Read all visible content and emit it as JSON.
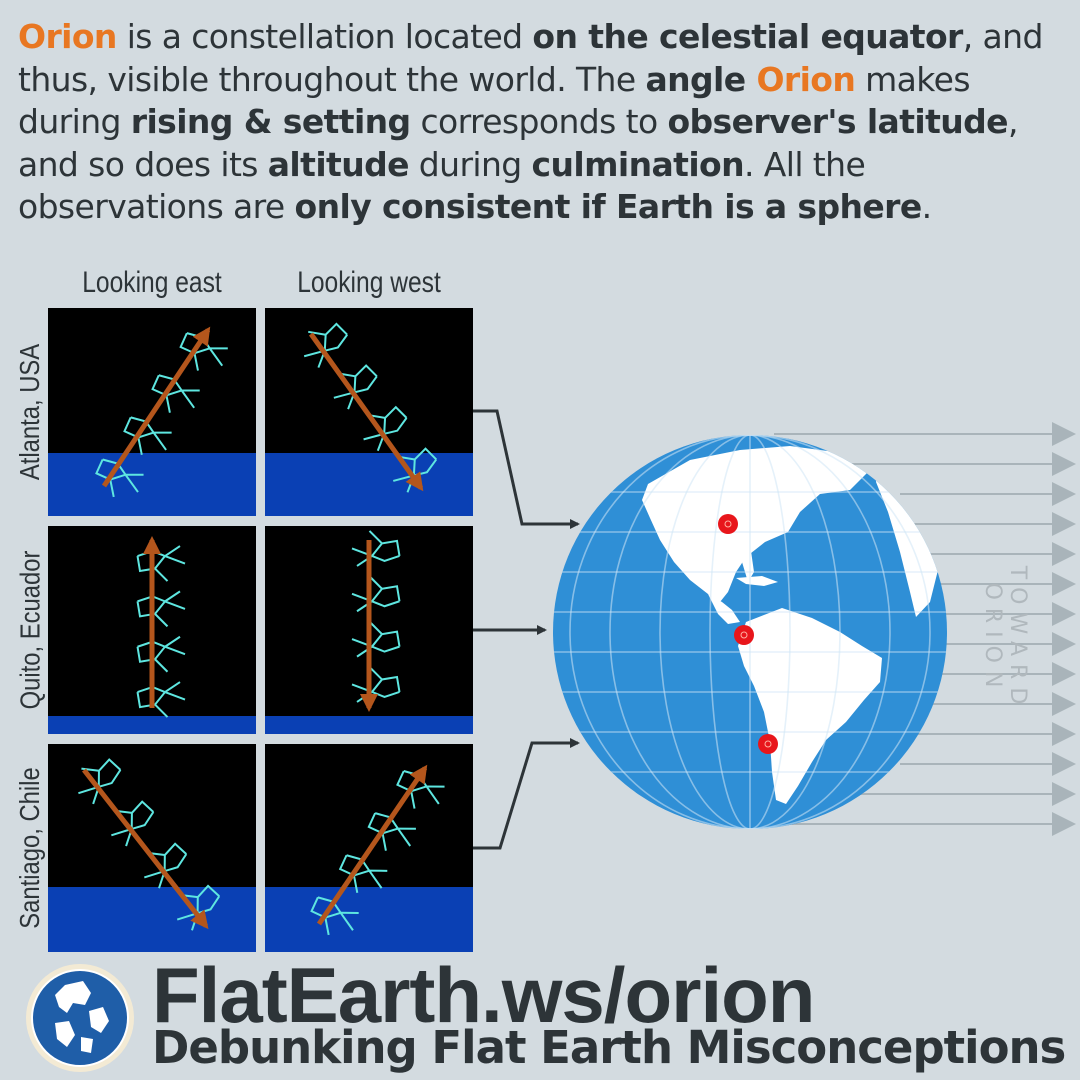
{
  "intro": {
    "s1_orion": "Orion",
    "s2": " is a constellation located ",
    "s3_bold": "on the celestial equator",
    "s4": ", and thus, visible throughout the world. The ",
    "s5_bold": "angle ",
    "s6_orion": "Orion",
    "s7": " makes during ",
    "s8_bold": "rising & setting",
    "s9": " corresponds to ",
    "s10_bold": "observer's latitude",
    "s11": ", and so does its ",
    "s12_bold": "altitude",
    "s13": " during ",
    "s14_bold": "culmination",
    "s15": ". All the observations are ",
    "s16_bold": "only consistent if Earth is a sphere",
    "s17": "."
  },
  "columns": {
    "east": "Looking east",
    "west": "Looking west"
  },
  "rows": {
    "atlanta": "Atlanta, USA",
    "quito": "Quito, Ecuador",
    "santiago": "Santiago, Chile"
  },
  "globe": {
    "toward_label": "TOWARD ORION"
  },
  "footer": {
    "brand": "FlatEarth.ws/orion",
    "tagline": "Debunking Flat Earth Misconceptions"
  },
  "colors": {
    "background": "#d3dbe0",
    "text": "#2d3438",
    "orion_accent": "#e87722",
    "sky": "#000000",
    "horizon": "#0a40b4",
    "constellation": "#5ee6e0",
    "path_arrow": "#b4561c",
    "ocean": "#2f8fd6",
    "land": "#ffffff",
    "observer_marker": "#e8161b",
    "ray": "#a9b4ba"
  },
  "panels": [
    {
      "row": "atlanta",
      "view": "east",
      "motion": "rising",
      "tilt": "diagonal-right"
    },
    {
      "row": "atlanta",
      "view": "west",
      "motion": "setting",
      "tilt": "diagonal-right"
    },
    {
      "row": "quito",
      "view": "east",
      "motion": "rising",
      "tilt": "vertical"
    },
    {
      "row": "quito",
      "view": "west",
      "motion": "setting",
      "tilt": "vertical"
    },
    {
      "row": "santiago",
      "view": "east",
      "motion": "rising",
      "tilt": "diagonal-left"
    },
    {
      "row": "santiago",
      "view": "west",
      "motion": "setting",
      "tilt": "diagonal-left"
    }
  ],
  "icons": [
    "observer-marker-icon",
    "arrow-icon",
    "globe-logo-icon"
  ]
}
